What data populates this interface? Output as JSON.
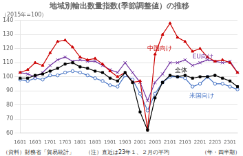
{
  "chart_data": {
    "type": "line",
    "title": "地域別輸出数量指数(季節調整値）の推移",
    "y_label": "（2015年=100）",
    "x_label": "（年・四半期）",
    "note": "（資料）財務省「貿易統計」　　（注）直近は23年１、２月の平均",
    "categories": [
      "1601",
      null,
      "1603",
      null,
      "1701",
      null,
      "1703",
      null,
      "1801",
      null,
      "1803",
      null,
      "1901",
      null,
      "1903",
      null,
      "2001",
      null,
      "2003",
      null,
      "2101",
      null,
      "2103",
      null,
      "2201",
      null,
      "2203",
      null,
      "2301",
      null
    ],
    "series": [
      {
        "color": "#000000",
        "marker": "square",
        "values": [
          99,
          99,
          101,
          102,
          104,
          106,
          109,
          110,
          107,
          106,
          104,
          103,
          99,
          97,
          103,
          96,
          75,
          62,
          85,
          96,
          101,
          100,
          101,
          99,
          100,
          100,
          101,
          99,
          97,
          93
        ]
      },
      {
        "color": "#cc0000",
        "marker": "triangle",
        "values": [
          103,
          105,
          110,
          108,
          117,
          125,
          126,
          121,
          114,
          112,
          113,
          109,
          104,
          100,
          103,
          96,
          97,
          63,
          116,
          130,
          138,
          128,
          125,
          118,
          120,
          114,
          111,
          112,
          110,
          103
        ]
      },
      {
        "color": "#7030a0",
        "marker": "x",
        "values": [
          103,
          102,
          100,
          103,
          108,
          112,
          114,
          111,
          112,
          111,
          111,
          108,
          105,
          103,
          110,
          103,
          96,
          83,
          96,
          102,
          110,
          110,
          112,
          108,
          110,
          112,
          111,
          110,
          111,
          103
        ]
      },
      {
        "color": "#4472c4",
        "marker": "open_circle",
        "values": [
          98,
          97,
          99,
          98,
          101,
          101,
          103,
          104,
          103,
          101,
          99,
          97,
          94,
          93,
          101,
          98,
          88,
          76,
          88,
          96,
          100,
          100,
          99,
          93,
          95,
          100,
          95,
          95,
          93,
          91
        ]
      }
    ],
    "annotations": [
      {
        "text": "中国向け",
        "x": 17,
        "y": 120,
        "color": "#cc0000"
      },
      {
        "text": "全体",
        "x": 20.6,
        "y": 104.5,
        "color": "#000000"
      },
      {
        "text": "EU向け",
        "x": 23,
        "y": 114,
        "color": "#7030a0"
      },
      {
        "text": "米国向け",
        "x": 22.6,
        "y": 86.5,
        "color": "#4472c4"
      }
    ],
    "ylim": [
      60,
      140
    ],
    "yticks": [
      60,
      70,
      80,
      90,
      100,
      110,
      120,
      130,
      140
    ],
    "grid": "y",
    "legend": false
  }
}
